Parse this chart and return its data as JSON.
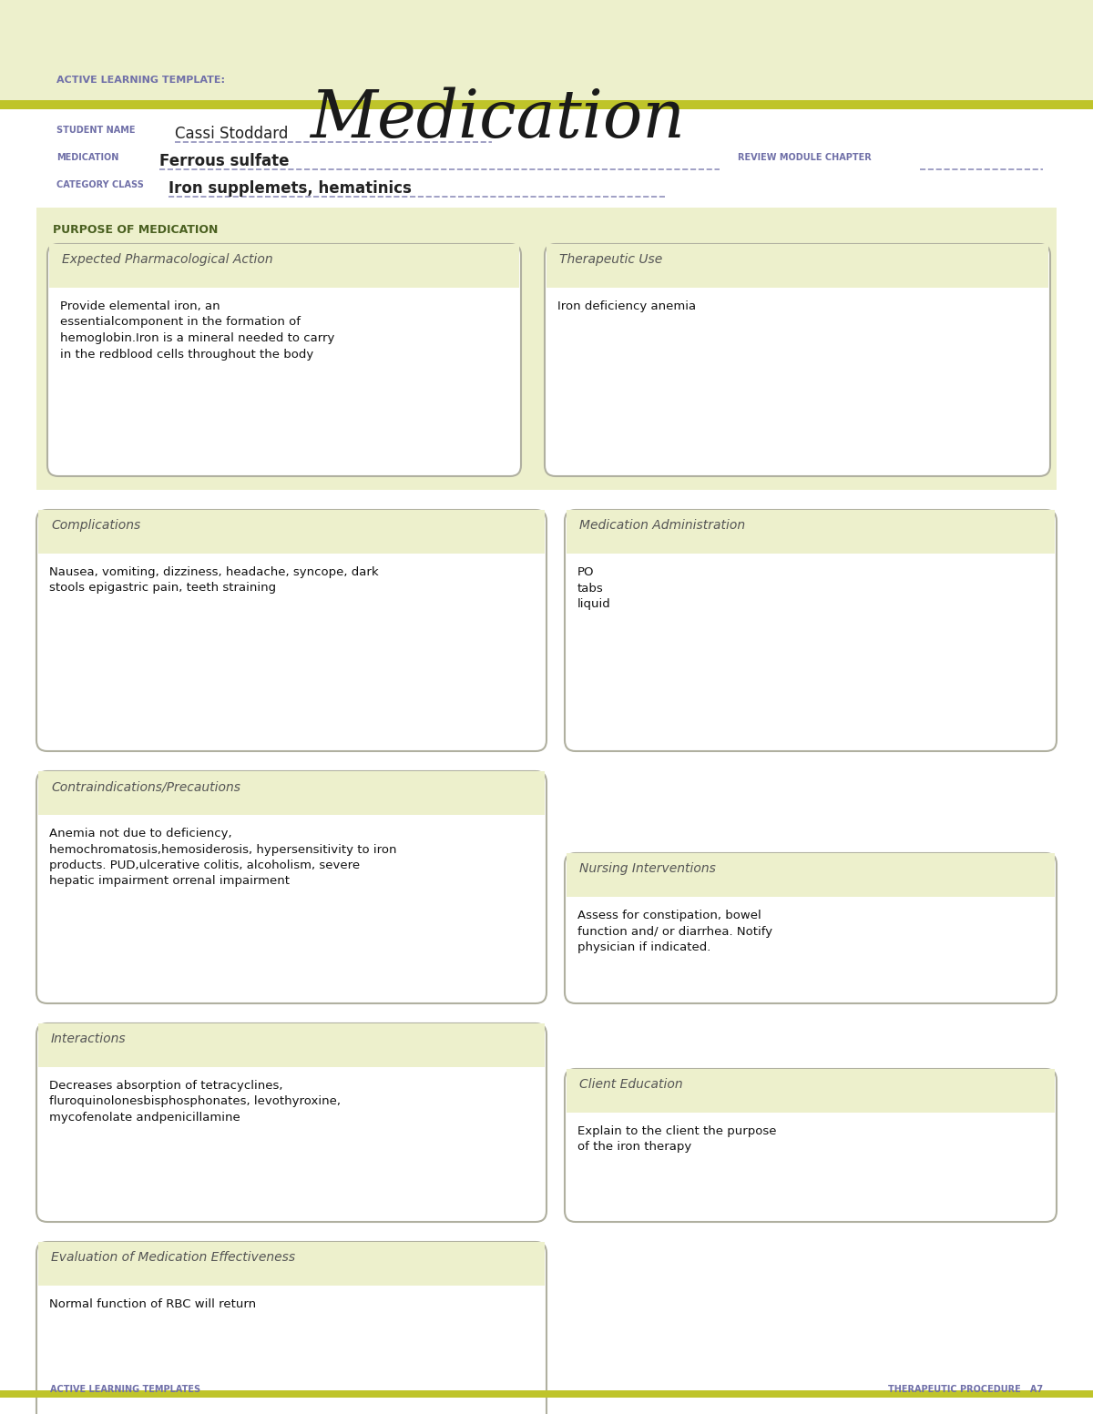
{
  "page_bg": "#ffffff",
  "header_bg": "#edf0cc",
  "header_stripe_color": "#bfc42a",
  "header_label_color": "#7070a8",
  "header_label_text": "ACTIVE LEARNING TEMPLATE:",
  "header_title": "Medication",
  "footer_left": "ACTIVE LEARNING TEMPLATES",
  "footer_right": "THERAPEUTIC PROCEDURE   A7",
  "footer_color": "#7070a8",
  "footer_stripe_color": "#bfc42a",
  "field_label_color": "#7070a8",
  "field_value_color": "#222222",
  "underline_color": "#9090bb",
  "student_label": "STUDENT NAME",
  "student_value": "Cassi Stoddard",
  "medication_label": "MEDICATION",
  "medication_value": "Ferrous sulfate",
  "review_label": "REVIEW MODULE CHAPTER",
  "category_label": "CATEGORY CLASS",
  "category_value": "Iron supplemets, hematinics",
  "section_bg": "#edf0cc",
  "box_bg": "#ffffff",
  "box_border": "#b0b0a0",
  "purpose_label_color": "#4a6020",
  "box_title_color": "#555555",
  "box_text_color": "#111111",
  "purpose_label": "PURPOSE OF MEDICATION",
  "box1_title": "Expected Pharmacological Action",
  "box1_text": "Provide elemental iron, an\nessentialcomponent in the formation of\nhemoglobin.Iron is a mineral needed to carry\nin the redblood cells throughout the body",
  "box2_title": "Therapeutic Use",
  "box2_text": "Iron deficiency anemia",
  "box3_title": "Complications",
  "box3_text": "Nausea, vomiting, dizziness, headache, syncope, dark\nstools epigastric pain, teeth straining",
  "box4_title": "Medication Administration",
  "box4_text": "PO\ntabs\nliquid",
  "box5_title": "Contraindications/Precautions",
  "box5_text": "Anemia not due to deficiency,\nhemochromatosis,hemosiderosis, hypersensitivity to iron\nproducts. PUD,ulcerative colitis, alcoholism, severe\nhepatic impairment orrenal impairment",
  "box6_title": "Nursing Interventions",
  "box6_text": "Assess for constipation, bowel\nfunction and/ or diarrhea. Notify\nphysician if indicated.",
  "box7_title": "Interactions",
  "box7_text": "Decreases absorption of tetracyclines,\nfluroquinolonesbisphosphonates, levothyroxine,\nmycofenolate andpenicillamine",
  "box8_title": "Client Education",
  "box8_text": "Explain to the client the purpose\nof the iron therapy",
  "box9_title": "Evaluation of Medication Effectiveness",
  "box9_text": "Normal function of RBC will return"
}
